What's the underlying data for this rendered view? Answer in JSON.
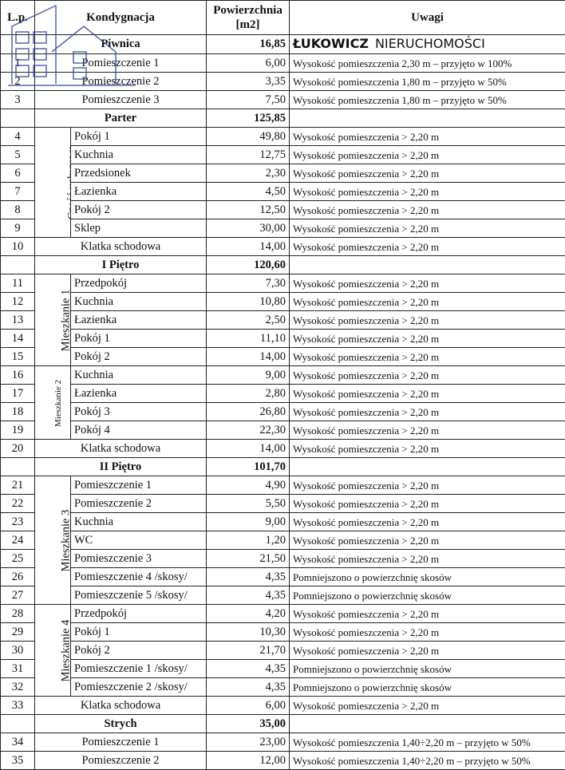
{
  "headers": {
    "lp": "L.p.",
    "kond": "Kondygnacja",
    "pow": "Powierzchnia [m2]",
    "uwagi": "Uwagi"
  },
  "watermark": {
    "line1": "ŁUKOWICZ",
    "line2": "NIERUCHOMOŚCI",
    "color": "#3a4a9a"
  },
  "sections": [
    {
      "name": "Piwnica",
      "total": "16,85",
      "rows": [
        {
          "lp": "1",
          "name": "Pomieszczenie 1",
          "area": "6,00",
          "note": "Wysokość pomieszczenia 2,30 m – przyjęto w 100%"
        },
        {
          "lp": "2",
          "name": "Pomieszczenie 2",
          "area": "3,35",
          "note": "Wysokość pomieszczenia 1,80 m – przyjęto w 50%"
        },
        {
          "lp": "3",
          "name": "Pomieszczenie 3",
          "area": "7,50",
          "note": "Wysokość pomieszczenia 1,80 m – przyjęto w 50%"
        }
      ]
    },
    {
      "name": "Parter",
      "total": "125,85",
      "rows": [
        {
          "lp": "4",
          "group": "Część usługowa",
          "span": 6,
          "name": "Pokój 1",
          "area": "49,80",
          "note": "Wysokość pomieszczenia > 2,20 m"
        },
        {
          "lp": "5",
          "name": "Kuchnia",
          "area": "12,75",
          "note": "Wysokość pomieszczenia > 2,20 m"
        },
        {
          "lp": "6",
          "name": "Przedsionek",
          "area": "2,30",
          "note": "Wysokość pomieszczenia > 2,20 m"
        },
        {
          "lp": "7",
          "name": "Łazienka",
          "area": "4,50",
          "note": "Wysokość pomieszczenia > 2,20 m"
        },
        {
          "lp": "8",
          "name": "Pokój 2",
          "area": "12,50",
          "note": "Wysokość pomieszczenia > 2,20 m"
        },
        {
          "lp": "9",
          "name": "Sklep",
          "area": "30,00",
          "note": "Wysokość pomieszczenia > 2,20 m"
        },
        {
          "lp": "10",
          "full": true,
          "name": "Klatka schodowa",
          "area": "14,00",
          "note": "Wysokość pomieszczenia > 2,20 m"
        }
      ]
    },
    {
      "name": "I Piętro",
      "total": "120,60",
      "rows": [
        {
          "lp": "11",
          "group": "Mieszkanie 1",
          "span": 5,
          "name": "Przedpokój",
          "area": "7,30",
          "note": "Wysokość pomieszczenia > 2,20 m"
        },
        {
          "lp": "12",
          "name": "Kuchnia",
          "area": "10,80",
          "note": "Wysokość pomieszczenia > 2,20 m"
        },
        {
          "lp": "13",
          "name": "Łazienka",
          "area": "2,50",
          "note": "Wysokość pomieszczenia > 2,20 m"
        },
        {
          "lp": "14",
          "name": "Pokój 1",
          "area": "11,10",
          "note": "Wysokość pomieszczenia > 2,20 m"
        },
        {
          "lp": "15",
          "name": "Pokój 2",
          "area": "14,00",
          "note": "Wysokość pomieszczenia > 2,20 m"
        },
        {
          "lp": "16",
          "group": "Mieszkanie 2",
          "small": true,
          "span": 4,
          "name": "Kuchnia",
          "area": "9,00",
          "note": "Wysokość pomieszczenia > 2,20 m"
        },
        {
          "lp": "17",
          "name": "Łazienka",
          "area": "2,80",
          "note": "Wysokość pomieszczenia > 2,20 m"
        },
        {
          "lp": "18",
          "name": "Pokój 3",
          "area": "26,80",
          "note": "Wysokość pomieszczenia > 2,20 m"
        },
        {
          "lp": "19",
          "name": "Pokój 4",
          "area": "22,30",
          "note": "Wysokość pomieszczenia > 2,20 m"
        },
        {
          "lp": "20",
          "full": true,
          "name": "Klatka schodowa",
          "area": "14,00",
          "note": "Wysokość pomieszczenia > 2,20 m"
        }
      ]
    },
    {
      "name": "II Piętro",
      "total": "101,70",
      "rows": [
        {
          "lp": "21",
          "group": "Mieszkanie 3",
          "span": 7,
          "name": "Pomieszczenie 1",
          "area": "4,90",
          "note": "Wysokość pomieszczenia > 2,20 m"
        },
        {
          "lp": "22",
          "name": "Pomieszczenie 2",
          "area": "5,50",
          "note": "Wysokość pomieszczenia > 2,20 m"
        },
        {
          "lp": "23",
          "name": "Kuchnia",
          "area": "9,00",
          "note": "Wysokość pomieszczenia > 2,20 m"
        },
        {
          "lp": "24",
          "name": "WC",
          "area": "1,20",
          "note": "Wysokość pomieszczenia > 2,20 m"
        },
        {
          "lp": "25",
          "name": "Pomieszczenie 3",
          "area": "21,50",
          "note": "Wysokość pomieszczenia > 2,20 m"
        },
        {
          "lp": "26",
          "name": "Pomieszczenie 4 /skosy/",
          "area": "4,35",
          "note": "Pomniejszono o powierzchnię skosów"
        },
        {
          "lp": "27",
          "name": "Pomieszczenie 5 /skosy/",
          "area": "4,35",
          "note": "Pomniejszono o powierzchnię skosów"
        },
        {
          "lp": "28",
          "group": "Mieszkanie 4",
          "span": 5,
          "name": "Przedpokój",
          "area": "4,20",
          "note": "Wysokość pomieszczenia > 2,20 m"
        },
        {
          "lp": "29",
          "name": "Pokój 1",
          "area": "10,30",
          "note": "Wysokość pomieszczenia > 2,20 m"
        },
        {
          "lp": "30",
          "name": "Pokój 2",
          "area": "21,70",
          "note": "Wysokość pomieszczenia > 2,20 m"
        },
        {
          "lp": "31",
          "name": "Pomieszczenie 1 /skosy/",
          "area": "4,35",
          "note": "Pomniejszono o powierzchnię skosów"
        },
        {
          "lp": "32",
          "name": "Pomieszczenie 2 /skosy/",
          "area": "4,35",
          "note": "Pomniejszono o powierzchnię skosów"
        },
        {
          "lp": "33",
          "full": true,
          "name": "Klatka schodowa",
          "area": "6,00",
          "note": "Wysokość pomieszczenia > 2,20 m"
        }
      ]
    },
    {
      "name": "Strych",
      "total": "35,00",
      "rows": [
        {
          "lp": "34",
          "full": true,
          "name": "Pomieszczenie 1",
          "area": "23,00",
          "note": "Wysokość pomieszczenia 1,40÷2,20 m – przyjęto w 50%"
        },
        {
          "lp": "35",
          "full": true,
          "name": "Pomieszczenie 2",
          "area": "12,00",
          "note": "Wysokość pomieszczenia 1,40÷2,20 m – przyjęto w 50%"
        }
      ]
    }
  ]
}
